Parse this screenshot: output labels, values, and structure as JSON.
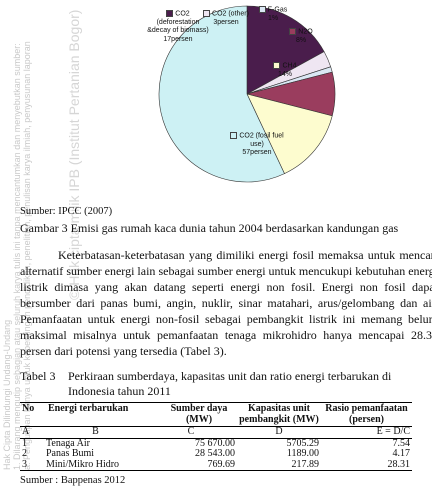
{
  "chart_data": {
    "type": "pie",
    "categories": [
      "CO2 (deforestation &decay of biomass)",
      "CO2 (other)",
      "F-Gas",
      "N2O",
      "CH4",
      "CO2 (fosil fuel use)"
    ],
    "values": [
      17,
      3,
      1,
      8,
      14,
      57
    ],
    "value_labels": [
      "17persen",
      "3persen",
      "1%",
      "8%",
      "14%",
      "57persen"
    ],
    "colors": [
      "#4a1d4c",
      "#efe6f2",
      "#dbe8f4",
      "#9a3d5e",
      "#fdfccf",
      "#cdf1f4"
    ]
  },
  "watermark": [
    "Hak Cipta Dilindungi Undang-Undang",
    "1. Dilarang mengutip sebagian atau seluruh karya tulis ini tanpa mencantumkan dan menyebutkan sumber:",
    "a. Pengutipan hanya untuk kepentingan pendidikan, penelitian, penulisan karya ilmiah, penyusunan laporan",
    "© Hak cipta milik IPB (Institut Pertanian Bogor)"
  ],
  "figure": {
    "source": "Sumber: IPCC (2007)",
    "caption": "Gambar 3 Emisi gas rumah kaca dunia tahun 2004 berdasarkan kandungan gas"
  },
  "paragraph": "Keterbatasan-keterbatasan yang dimiliki energi fosil memaksa untuk mencari alternatif sumber energi lain sebagai sumber energi untuk mencukupi kebutuhan energi listrik dimasa yang akan datang seperti energi non fosil. Energi non fosil dapat bersumber dari panas bumi, angin, nuklir, sinar matahari, arus/gelombang dan air. Pemanfaatan untuk energi non-fosil sebagai pembangkit listrik ini memang belum maksimal misalnya untuk pemanfaatan tenaga mikrohidro hanya mencapai 28.31 persen dari potensi yang tersedia (Tabel 3).",
  "table": {
    "caption_label": "Tabel 3",
    "caption": "Perkiraan sumberdaya, kapasitas unit dan ratio energi terbarukan di Indonesia tahun 2011",
    "headers": [
      "No",
      "Energi terbarukan",
      "Sumber daya (MW)",
      "Kapasitas unit pembangkit (MW)",
      "Rasio pemanfaatan (persen)"
    ],
    "letters": [
      "A",
      "B",
      "C",
      "D",
      "E = D/C"
    ],
    "rows": [
      [
        "1",
        "Tenaga Air",
        "75 670.00",
        "5705.29",
        "7.54"
      ],
      [
        "2",
        "Panas Bumi",
        "28 543.00",
        "1189.00",
        "4.17"
      ],
      [
        "3",
        "Mini/Mikro Hidro",
        "769.69",
        "217.89",
        "28.31"
      ]
    ],
    "source": "Sumber : Bappenas 2012"
  }
}
